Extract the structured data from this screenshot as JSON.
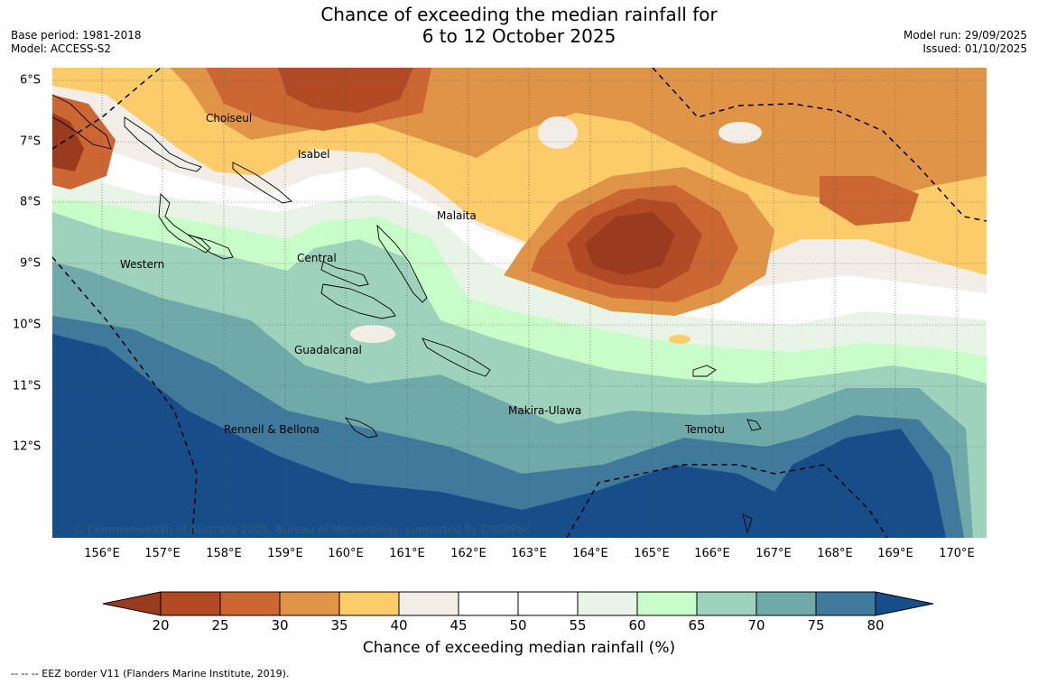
{
  "title": {
    "line1": "Chance of exceeding the median rainfall for",
    "line2": "6 to 12 October 2025"
  },
  "meta_left": {
    "base_period": "Base period: 1981-2018",
    "model": "Model: ACCESS-S2"
  },
  "meta_right": {
    "model_run": "Model run: 29/09/2025",
    "issued": "Issued: 01/10/2025"
  },
  "latitudes": [
    "6°S",
    "7°S",
    "8°S",
    "9°S",
    "10°S",
    "11°S",
    "12°S"
  ],
  "longitudes": [
    "156°E",
    "157°E",
    "158°E",
    "159°E",
    "160°E",
    "161°E",
    "162°E",
    "163°E",
    "164°E",
    "165°E",
    "166°E",
    "167°E",
    "168°E",
    "169°E",
    "170°E"
  ],
  "places": {
    "choiseul": "Choiseul",
    "isabel": "Isabel",
    "malaita": "Malaita",
    "central": "Central",
    "western": "Western",
    "guadalcanal": "Guadalcanal",
    "makira": "Makira-Ulawa",
    "rennell": "Rennell & Bellona",
    "temotu": "Temotu"
  },
  "copyright": "© Commonwealth of Australia 2025, Bureau of Meteorology, supported by COSPPac",
  "colorbar": {
    "ticks": [
      "20",
      "25",
      "30",
      "35",
      "40",
      "45",
      "50",
      "55",
      "60",
      "65",
      "70",
      "75",
      "80"
    ],
    "colors": [
      "#9a3a1e",
      "#b24a25",
      "#cc6633",
      "#e09448",
      "#fdcc6a",
      "#f2ede6",
      "#ffffff",
      "#ffffff",
      "#e8f4e6",
      "#c8fcc8",
      "#9ed2bc",
      "#6fa9a9",
      "#3f7a9c",
      "#174e8a"
    ],
    "title": "Chance of exceeding median rainfall (%)"
  },
  "eez_note": "--  --  -- EEZ border V11 (Flanders Marine Institute, 2019)."
}
